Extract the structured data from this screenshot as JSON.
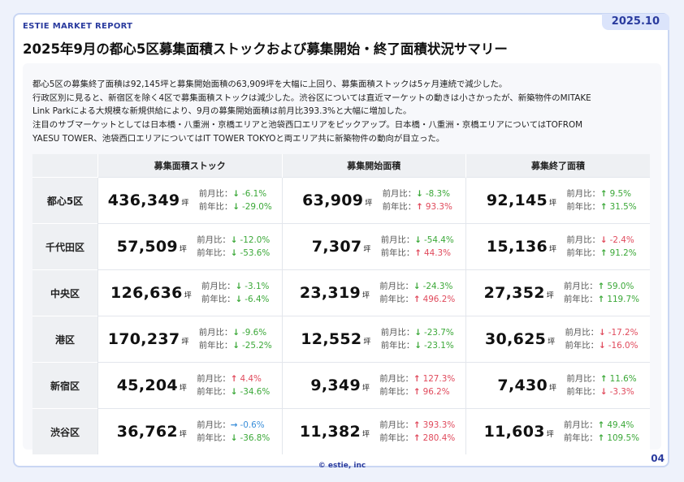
{
  "brand": "ESTIE MARKET REPORT",
  "date": "2025.10",
  "title": "2025年9月の都心5区募集面積ストックおよび募集開始・終了面積状況サマリー",
  "summary": [
    "都心5区の募集終了面積は92,145坪と募集開始面積の63,909坪を大幅に上回り、募集面積ストックは5ヶ月連続で減少した。",
    "行政区別に見ると、新宿区を除く4区で募集面積ストックは減少した。渋谷区については直近マーケットの動きは小さかったが、新築物件のMITAKE",
    "Link Parkによる大規模な新規供給により、9月の募集開始面積は前月比393.3%と大幅に増加した。",
    "注目のサブマーケットとしては日本橋・八重洲・京橋エリアと池袋西口エリアをピックアップ。日本橋・八重洲・京橋エリアについてはTOFROM",
    "YAESU TOWER、池袋西口エリアについてはIT TOWER TOKYOと両エリア共に新築物件の動向が目立った。"
  ],
  "table": {
    "headers": [
      "募集面積ストック",
      "募集開始面積",
      "募集終了面積"
    ],
    "unit": "坪",
    "mom_label": "前月比：",
    "yoy_label": "前年比：",
    "rows": [
      {
        "area": "都心5区",
        "cells": [
          {
            "value": "436,349",
            "mom": "-6.1%",
            "mom_dir": "down",
            "yoy": "-29.0%",
            "yoy_dir": "down"
          },
          {
            "value": "63,909",
            "mom": "-8.3%",
            "mom_dir": "down",
            "yoy": "93.3%",
            "yoy_dir": "up"
          },
          {
            "value": "92,145",
            "mom": "9.5%",
            "mom_dir": "upgreen",
            "yoy": "31.5%",
            "yoy_dir": "upgreen"
          }
        ]
      },
      {
        "area": "千代田区",
        "cells": [
          {
            "value": "57,509",
            "mom": "-12.0%",
            "mom_dir": "down",
            "yoy": "-53.6%",
            "yoy_dir": "down"
          },
          {
            "value": "7,307",
            "mom": "-54.4%",
            "mom_dir": "down",
            "yoy": "44.3%",
            "yoy_dir": "up"
          },
          {
            "value": "15,136",
            "mom": "-2.4%",
            "mom_dir": "downred",
            "yoy": "91.2%",
            "yoy_dir": "upgreen"
          }
        ]
      },
      {
        "area": "中央区",
        "cells": [
          {
            "value": "126,636",
            "mom": "-3.1%",
            "mom_dir": "down",
            "yoy": "-6.4%",
            "yoy_dir": "down"
          },
          {
            "value": "23,319",
            "mom": "-24.3%",
            "mom_dir": "down",
            "yoy": "496.2%",
            "yoy_dir": "up"
          },
          {
            "value": "27,352",
            "mom": "59.0%",
            "mom_dir": "upgreen",
            "yoy": "119.7%",
            "yoy_dir": "upgreen"
          }
        ]
      },
      {
        "area": "港区",
        "cells": [
          {
            "value": "170,237",
            "mom": "-9.6%",
            "mom_dir": "down",
            "yoy": "-25.2%",
            "yoy_dir": "down"
          },
          {
            "value": "12,552",
            "mom": "-23.7%",
            "mom_dir": "down",
            "yoy": "-23.1%",
            "yoy_dir": "down"
          },
          {
            "value": "30,625",
            "mom": "-17.2%",
            "mom_dir": "downred",
            "yoy": "-16.0%",
            "yoy_dir": "downred"
          }
        ]
      },
      {
        "area": "新宿区",
        "cells": [
          {
            "value": "45,204",
            "mom": "4.4%",
            "mom_dir": "up",
            "yoy": "-34.6%",
            "yoy_dir": "down"
          },
          {
            "value": "9,349",
            "mom": "127.3%",
            "mom_dir": "up",
            "yoy": "96.2%",
            "yoy_dir": "up"
          },
          {
            "value": "7,430",
            "mom": "11.6%",
            "mom_dir": "upgreen",
            "yoy": "-3.3%",
            "yoy_dir": "downred"
          }
        ]
      },
      {
        "area": "渋谷区",
        "cells": [
          {
            "value": "36,762",
            "mom": "-0.6%",
            "mom_dir": "flat",
            "yoy": "-36.8%",
            "yoy_dir": "down"
          },
          {
            "value": "11,382",
            "mom": "393.3%",
            "mom_dir": "up",
            "yoy": "280.4%",
            "yoy_dir": "up"
          },
          {
            "value": "11,603",
            "mom": "49.4%",
            "mom_dir": "upgreen",
            "yoy": "109.5%",
            "yoy_dir": "upgreen"
          }
        ]
      }
    ]
  },
  "footer": "© estie, inc",
  "page_number": "04"
}
